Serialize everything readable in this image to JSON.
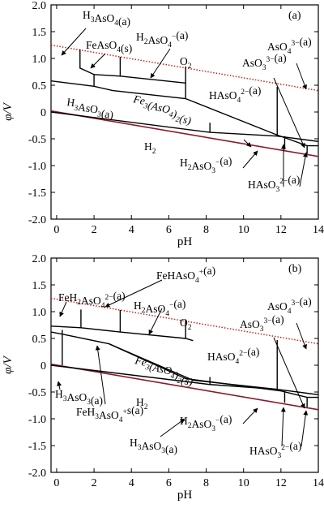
{
  "chart_data": [
    {
      "type": "line",
      "panel_label": "(a)",
      "xlabel": "pH",
      "ylabel": "φ/V",
      "xlim": [
        -0.3,
        14
      ],
      "ylim": [
        -2.0,
        2.0
      ],
      "xticks": [
        "0",
        "2",
        "4",
        "6",
        "8",
        "10",
        "12",
        "14"
      ],
      "yticks": [
        "2.0",
        "1.5",
        "1.0",
        "0.5",
        "0",
        "-0.5",
        "-1.0",
        "-1.5",
        "-2.0"
      ],
      "grid": false,
      "water_lines": [
        {
          "label": "O2",
          "style": "dotted",
          "color": "#cc2222",
          "points": [
            [
              -0.3,
              1.25
            ],
            [
              14,
              0.4
            ]
          ]
        },
        {
          "label": "H2",
          "style": "solid",
          "color": "#8b1a2a",
          "points": [
            [
              -0.3,
              0.02
            ],
            [
              14,
              -0.83
            ]
          ]
        }
      ],
      "boundaries": [
        [
          [
            -0.3,
            0.58
          ],
          [
            2.0,
            0.48
          ],
          [
            3.0,
            0.4
          ],
          [
            6.9,
            0.25
          ],
          [
            11.8,
            -0.43
          ],
          [
            13.4,
            -0.63
          ],
          [
            14,
            -0.63
          ]
        ],
        [
          [
            -0.3,
            0.0
          ],
          [
            8.2,
            -0.38
          ],
          [
            11.8,
            -0.45
          ],
          [
            14,
            -0.55
          ]
        ],
        [
          [
            1.25,
            1.17
          ],
          [
            1.25,
            0.82
          ],
          [
            2.0,
            0.7
          ],
          [
            2.0,
            0.48
          ]
        ],
        [
          [
            2.0,
            0.7
          ],
          [
            3.4,
            0.67
          ],
          [
            6.9,
            0.54
          ]
        ],
        [
          [
            3.4,
            1.03
          ],
          [
            3.4,
            0.67
          ]
        ],
        [
          [
            6.9,
            0.85
          ],
          [
            6.9,
            0.25
          ]
        ],
        [
          [
            8.2,
            -0.2
          ],
          [
            8.2,
            -0.38
          ]
        ],
        [
          [
            11.8,
            0.47
          ],
          [
            11.8,
            -0.45
          ]
        ],
        [
          [
            12.2,
            -0.45
          ],
          [
            12.2,
            -0.7
          ]
        ],
        [
          [
            13.4,
            -0.63
          ],
          [
            13.4,
            -0.78
          ]
        ]
      ],
      "labels": [
        {
          "text": "H3AsO4(a)"
        },
        {
          "text": "FeAsO4(s)"
        },
        {
          "text": "H2AsO4−(a)"
        },
        {
          "text": "AsO43−(a)"
        },
        {
          "text": "O2"
        },
        {
          "text": "AsO33−(a)"
        },
        {
          "text": "HAsO42−(a)"
        },
        {
          "text": "Fe3(AsO4)2(s)"
        },
        {
          "text": "H3AsO3(a)"
        },
        {
          "text": "H2"
        },
        {
          "text": "H2AsO3−(a)"
        },
        {
          "text": "HAsO32−(a)"
        }
      ]
    },
    {
      "type": "line",
      "panel_label": "(b)",
      "xlabel": "pH",
      "ylabel": "φ/V",
      "xlim": [
        -0.3,
        14
      ],
      "ylim": [
        -2.0,
        2.0
      ],
      "xticks": [
        "0",
        "2",
        "4",
        "6",
        "8",
        "10",
        "12",
        "14"
      ],
      "yticks": [
        "2.0",
        "1.5",
        "1.0",
        "0.5",
        "0",
        "-0.5",
        "-1.0",
        "-1.5",
        "-2.0"
      ],
      "grid": false,
      "water_lines": [
        {
          "label": "O2",
          "style": "dotted",
          "color": "#cc2222",
          "points": [
            [
              -0.3,
              1.25
            ],
            [
              14,
              0.4
            ]
          ]
        },
        {
          "label": "H2",
          "style": "solid",
          "color": "#8b1a2a",
          "points": [
            [
              -0.3,
              0.02
            ],
            [
              14,
              -0.83
            ]
          ]
        }
      ],
      "boundaries": [
        [
          [
            -0.3,
            0.73
          ],
          [
            1.3,
            0.7
          ],
          [
            3.4,
            0.62
          ],
          [
            6.9,
            0.5
          ],
          [
            7.3,
            0.46
          ]
        ],
        [
          [
            1.3,
            1.04
          ],
          [
            1.3,
            0.7
          ]
        ],
        [
          [
            3.4,
            1.03
          ],
          [
            3.4,
            0.62
          ]
        ],
        [
          [
            6.9,
            0.85
          ],
          [
            6.9,
            0.5
          ]
        ],
        [
          [
            0.3,
            0.66
          ],
          [
            0.3,
            0.58
          ]
        ],
        [
          [
            -0.3,
            0.62
          ],
          [
            0.3,
            0.58
          ],
          [
            2.8,
            0.4
          ],
          [
            6.9,
            -0.25
          ],
          [
            12.0,
            -0.48
          ],
          [
            13.4,
            -0.6
          ],
          [
            14,
            -0.6
          ]
        ],
        [
          [
            0.3,
            0.58
          ],
          [
            0.3,
            0.0
          ]
        ],
        [
          [
            2.8,
            0.4
          ],
          [
            7.3,
            -0.28
          ],
          [
            11.8,
            -0.45
          ],
          [
            14,
            -0.55
          ]
        ],
        [
          [
            -0.3,
            0.0
          ],
          [
            8.2,
            -0.36
          ],
          [
            11.8,
            -0.45
          ]
        ],
        [
          [
            8.2,
            -0.22
          ],
          [
            8.2,
            -0.36
          ]
        ],
        [
          [
            11.8,
            0.47
          ],
          [
            11.8,
            -0.45
          ]
        ],
        [
          [
            12.2,
            -0.48
          ],
          [
            12.2,
            -0.7
          ]
        ],
        [
          [
            13.4,
            -0.6
          ],
          [
            13.4,
            -0.78
          ]
        ]
      ],
      "labels": [
        {
          "text": "FeH2AsO42−(a)"
        },
        {
          "text": "FeHAsO4+(a)"
        },
        {
          "text": "H2AsO4−(a)"
        },
        {
          "text": "AsO43−(a)"
        },
        {
          "text": "O2"
        },
        {
          "text": "AsO33−(a)"
        },
        {
          "text": "HAsO42−(a)"
        },
        {
          "text": "Fe3(AsO4)2(s)"
        },
        {
          "text": "H3AsO3(a)"
        },
        {
          "text": "FeH3AsO4+s(a)"
        },
        {
          "text": "H2"
        },
        {
          "text": "H2AsO3−(a)"
        },
        {
          "text": "H3AsO3(a)"
        },
        {
          "text": "HAsO32−(a)"
        }
      ]
    }
  ]
}
